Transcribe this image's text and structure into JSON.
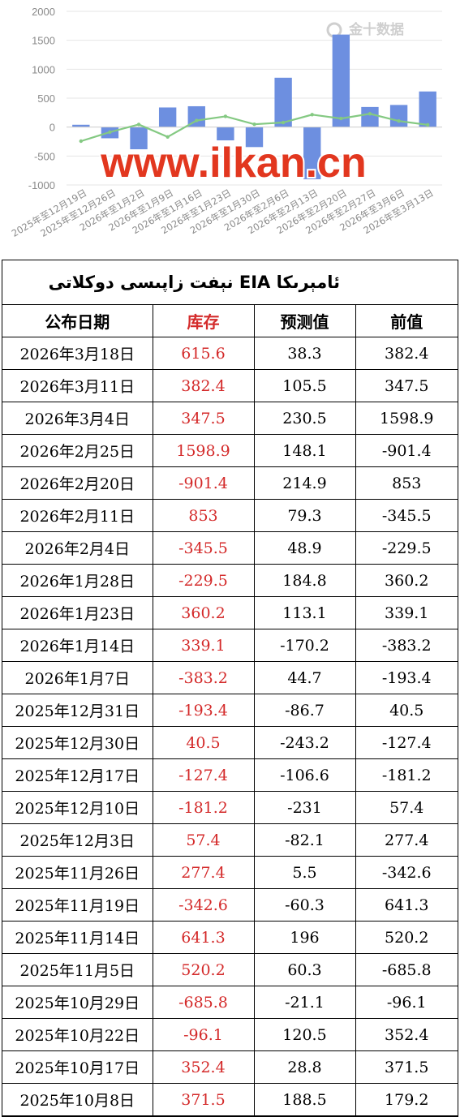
{
  "chart_data": {
    "type": "bar",
    "categories": [
      "2025年至12月19日",
      "2025年至12月26日",
      "2026年至1月2日",
      "2026年至1月9日",
      "2026年至1月16日",
      "2026年至1月23日",
      "2026年至1月30日",
      "2026年至2月6日",
      "2026年至2月13日",
      "2026年至2月20日",
      "2026年至2月27日",
      "2026年至3月6日",
      "2026年至3月13日"
    ],
    "series": [
      {
        "values": [
          40.5,
          -193.4,
          -383.2,
          339.1,
          360.2,
          -229.5,
          -345.5,
          853,
          -901.4,
          1598.9,
          347.5,
          382.4,
          615.6
        ],
        "color": "#6d8fe0"
      },
      {
        "values": [
          -243,
          -87,
          45,
          -170,
          113,
          185,
          49,
          79,
          215,
          148,
          230,
          105,
          38
        ],
        "color": "#84c982"
      }
    ],
    "ylim": [
      -1000,
      2000
    ],
    "yticks": [
      -1000,
      -500,
      0,
      500,
      1000,
      1500,
      2000
    ],
    "grid": true,
    "logo_text": "金十数据",
    "watermark": "www.ilkan.cn"
  },
  "table": {
    "title": "ئامېرىكا EIA نېفت زاپىسى دوكلاتى",
    "headers": [
      "公布日期",
      "库存",
      "预测值",
      "前值"
    ],
    "rows": [
      [
        "2026年3月18日",
        "615.6",
        "38.3",
        "382.4"
      ],
      [
        "2026年3月11日",
        "382.4",
        "105.5",
        "347.5"
      ],
      [
        "2026年3月4日",
        "347.5",
        "230.5",
        "1598.9"
      ],
      [
        "2026年2月25日",
        "1598.9",
        "148.1",
        "-901.4"
      ],
      [
        "2026年2月20日",
        "-901.4",
        "214.9",
        "853"
      ],
      [
        "2026年2月11日",
        "853",
        "79.3",
        "-345.5"
      ],
      [
        "2026年2月4日",
        "-345.5",
        "48.9",
        "-229.5"
      ],
      [
        "2026年1月28日",
        "-229.5",
        "184.8",
        "360.2"
      ],
      [
        "2026年1月23日",
        "360.2",
        "113.1",
        "339.1"
      ],
      [
        "2026年1月14日",
        "339.1",
        "-170.2",
        "-383.2"
      ],
      [
        "2026年1月7日",
        "-383.2",
        "44.7",
        "-193.4"
      ],
      [
        "2025年12月31日",
        "-193.4",
        "-86.7",
        "40.5"
      ],
      [
        "2025年12月30日",
        "40.5",
        "-243.2",
        "-127.4"
      ],
      [
        "2025年12月17日",
        "-127.4",
        "-106.6",
        "-181.2"
      ],
      [
        "2025年12月10日",
        "-181.2",
        "-231",
        "57.4"
      ],
      [
        "2025年12月3日",
        "57.4",
        "-82.1",
        "277.4"
      ],
      [
        "2025年11月26日",
        "277.4",
        "5.5",
        "-342.6"
      ],
      [
        "2025年11月19日",
        "-342.6",
        "-60.3",
        "641.3"
      ],
      [
        "2025年11月14日",
        "641.3",
        "196",
        "520.2"
      ],
      [
        "2025年11月5日",
        "520.2",
        "60.3",
        "-685.8"
      ],
      [
        "2025年10月29日",
        "-685.8",
        "-21.1",
        "-96.1"
      ],
      [
        "2025年10月22日",
        "-96.1",
        "120.5",
        "352.4"
      ],
      [
        "2025年10月17日",
        "352.4",
        "28.8",
        "371.5"
      ],
      [
        "2025年10月8日",
        "371.5",
        "188.5",
        "179.2"
      ]
    ]
  }
}
